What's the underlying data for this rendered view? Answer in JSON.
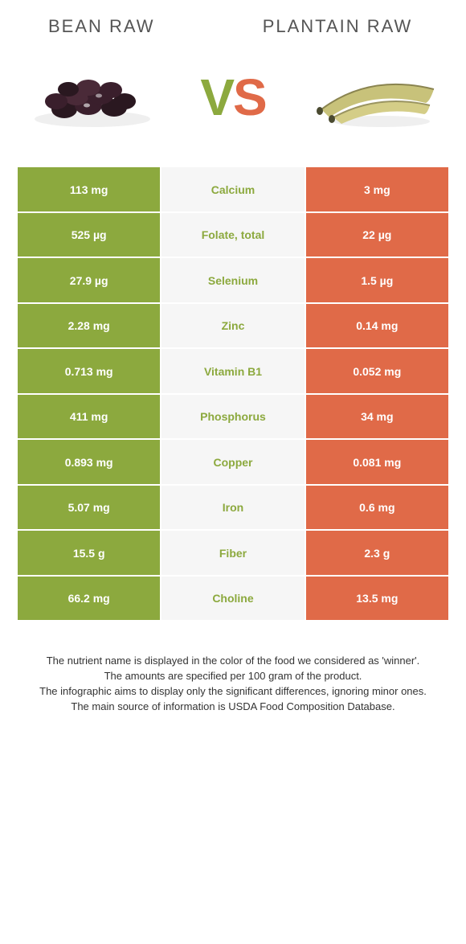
{
  "colors": {
    "left": "#8ca93e",
    "right": "#e06a48",
    "midBg": "#f6f6f6",
    "text": "#555555"
  },
  "header": {
    "left_title": "BEAN RAW",
    "right_title": "PLANTAIN RAW"
  },
  "vs": {
    "v": "V",
    "s": "S"
  },
  "rows": [
    {
      "left": "113 mg",
      "name": "Calcium",
      "right": "3 mg",
      "winner": "left"
    },
    {
      "left": "525 µg",
      "name": "Folate, total",
      "right": "22 µg",
      "winner": "left"
    },
    {
      "left": "27.9 µg",
      "name": "Selenium",
      "right": "1.5 µg",
      "winner": "left"
    },
    {
      "left": "2.28 mg",
      "name": "Zinc",
      "right": "0.14 mg",
      "winner": "left"
    },
    {
      "left": "0.713 mg",
      "name": "Vitamin B1",
      "right": "0.052 mg",
      "winner": "left"
    },
    {
      "left": "411 mg",
      "name": "Phosphorus",
      "right": "34 mg",
      "winner": "left"
    },
    {
      "left": "0.893 mg",
      "name": "Copper",
      "right": "0.081 mg",
      "winner": "left"
    },
    {
      "left": "5.07 mg",
      "name": "Iron",
      "right": "0.6 mg",
      "winner": "left"
    },
    {
      "left": "15.5 g",
      "name": "Fiber",
      "right": "2.3 g",
      "winner": "left"
    },
    {
      "left": "66.2 mg",
      "name": "Choline",
      "right": "13.5 mg",
      "winner": "left"
    }
  ],
  "footer": {
    "line1": "The nutrient name is displayed in the color of the food we considered as 'winner'.",
    "line2": "The amounts are specified per 100 gram of the product.",
    "line3": "The infographic aims to display only the significant differences, ignoring minor ones.",
    "line4": "The main source of information is USDA Food Composition Database."
  }
}
